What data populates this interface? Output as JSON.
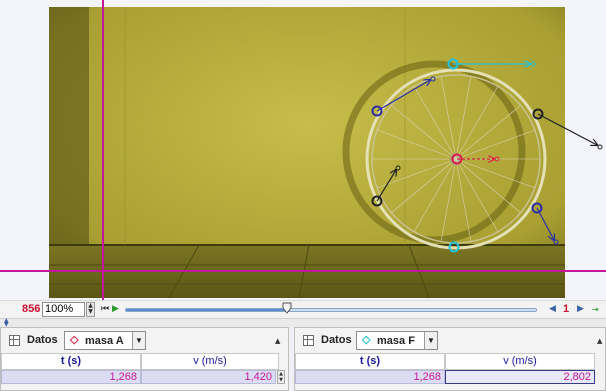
{
  "player": {
    "frame_number": "856",
    "zoom": "100%",
    "step_number": "1",
    "slider_position": 0.4
  },
  "panel_a": {
    "title": "Datos",
    "mass_label": "masa A",
    "mass_marker_color": "#d9204a",
    "columns": [
      "t (s)",
      "v (m/s)"
    ],
    "row": [
      "1,268",
      "1,420"
    ]
  },
  "panel_f": {
    "title": "Datos",
    "mass_label": "masa F",
    "mass_marker_color": "#22c2d9",
    "columns": [
      "t (s)",
      "v (m/s)"
    ],
    "row": [
      "1,268",
      "2,802"
    ]
  },
  "colors": {
    "axis": "#c2189a",
    "value_text": "#c2189a",
    "frame_num": "#c8102e",
    "slider": "#5c8fd6"
  },
  "icons": {
    "skip_start": "skip-to-start-icon",
    "play": "play-icon",
    "step_back": "step-back-icon",
    "step_forward": "step-forward-icon",
    "table": "table-icon"
  }
}
